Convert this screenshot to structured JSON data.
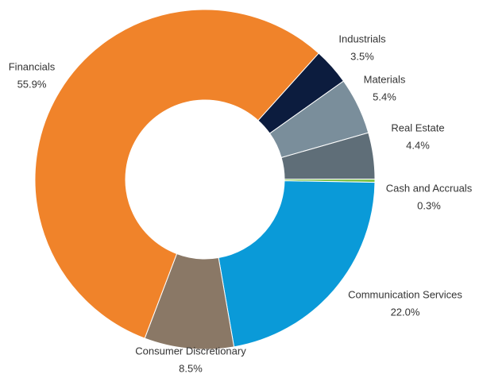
{
  "chart_data": {
    "type": "donut",
    "categories": [
      "Industrials",
      "Materials",
      "Real Estate",
      "Cash and Accruals",
      "Communication Services",
      "Consumer Discretionary",
      "Financials"
    ],
    "values": [
      3.5,
      5.4,
      4.4,
      0.3,
      22.0,
      8.5,
      55.9
    ],
    "value_labels": [
      "3.5%",
      "5.4%",
      "4.4%",
      "0.3%",
      "22.0%",
      "8.5%",
      "55.9%"
    ],
    "colors": [
      "#0c1c3e",
      "#7a8e9b",
      "#5f6e78",
      "#7ac143",
      "#0a9ad8",
      "#8a7866",
      "#f0832a"
    ]
  }
}
